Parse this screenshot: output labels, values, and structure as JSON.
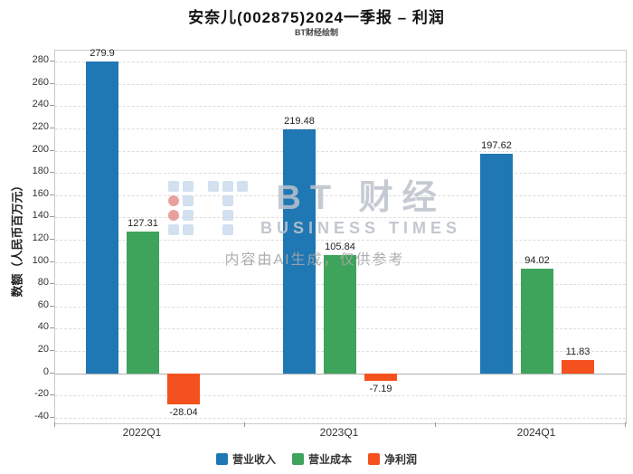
{
  "title": "安奈儿(002875)2024一季报 – 利润",
  "subtitle": "BT财经绘制",
  "watermark": {
    "brand_cn": "BT 财经",
    "brand_en": "BUSINESS TIMES",
    "disclaimer": "内容由AI生成，仅供参考"
  },
  "chart_data": {
    "type": "bar",
    "title": "安奈儿(002875)2024一季报 – 利润",
    "categories": [
      "2022Q1",
      "2023Q1",
      "2024Q1"
    ],
    "series": [
      {
        "name": "营业收入",
        "color": "#1f77b4",
        "values": [
          279.9,
          219.48,
          197.62
        ]
      },
      {
        "name": "营业成本",
        "color": "#3fa45b",
        "values": [
          127.31,
          105.84,
          94.02
        ]
      },
      {
        "name": "净利润",
        "color": "#f4511e",
        "values": [
          -28.04,
          -7.19,
          11.83
        ]
      }
    ],
    "xlabel": "",
    "ylabel": "数额（人民币百万元）",
    "ylim": [
      -40,
      280
    ],
    "ytick_step": 20,
    "grid": true,
    "legend_position": "bottom"
  }
}
